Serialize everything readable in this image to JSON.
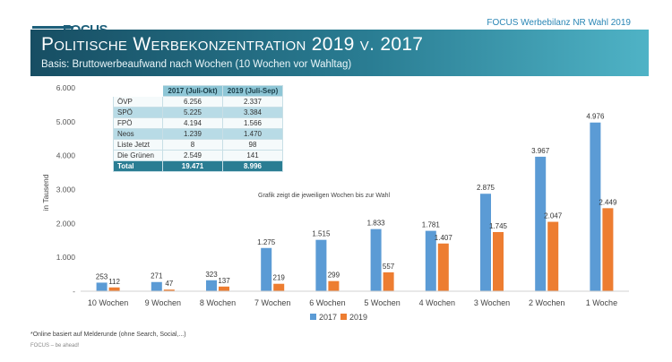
{
  "header": {
    "logo_text": "FOCUS",
    "top_right": "FOCUS Werbebilanz NR Wahl 2019",
    "title": "Politische Werbekonzentration 2019 v. 2017",
    "subtitle": "Basis: Bruttowerbeaufwand nach Wochen (10 Wochen vor Wahltag)"
  },
  "colors": {
    "series_2017": "#5b9bd5",
    "series_2019": "#ed7d31"
  },
  "table": {
    "headers": [
      "",
      "2017 (Juli-Okt)",
      "2019 (Juli-Sep)"
    ],
    "rows": [
      {
        "party": "ÖVP",
        "v2017": "6.256",
        "v2019": "2.337"
      },
      {
        "party": "SPÖ",
        "v2017": "5.225",
        "v2019": "3.384"
      },
      {
        "party": "FPÖ",
        "v2017": "4.194",
        "v2019": "1.566"
      },
      {
        "party": "Neos",
        "v2017": "1.239",
        "v2019": "1.470"
      },
      {
        "party": "Liste Jetzt",
        "v2017": "8",
        "v2019": "98"
      },
      {
        "party": "Die Grünen",
        "v2017": "2.549",
        "v2019": "141"
      }
    ],
    "total": {
      "party": "Total",
      "v2017": "19.471",
      "v2019": "8.996"
    }
  },
  "chart_data": {
    "type": "bar",
    "categories": [
      "10 Wochen",
      "9 Wochen",
      "8 Wochen",
      "7 Wochen",
      "6 Wochen",
      "5 Wochen",
      "4 Wochen",
      "3 Wochen",
      "2 Wochen",
      "1 Woche"
    ],
    "series": [
      {
        "name": "2017",
        "values": [
          253,
          271,
          323,
          1275,
          1515,
          1833,
          1781,
          2875,
          3967,
          4976
        ],
        "labels": [
          "253",
          "271",
          "323",
          "1.275",
          "1.515",
          "1.833",
          "1.781",
          "2.875",
          "3.967",
          "4.976"
        ]
      },
      {
        "name": "2019",
        "values": [
          112,
          47,
          137,
          219,
          299,
          557,
          1407,
          1745,
          2047,
          2449
        ],
        "labels": [
          "112",
          "47",
          "137",
          "219",
          "299",
          "557",
          "1.407",
          "1.745",
          "2.047",
          "2.449"
        ]
      }
    ],
    "ylabel": "in Tausend",
    "ylim": [
      0,
      6000
    ],
    "yticks": [
      "-",
      "1.000",
      "2.000",
      "3.000",
      "4.000",
      "5.000",
      "6.000"
    ],
    "annotation": "Grafik zeigt die jeweiligen Wochen bis zur Wahl",
    "legend": "bottom",
    "grid": false
  },
  "footnote": "*Online basiert auf Melderunde (ohne Search, Social,...)",
  "footer": "FOCUS – be ahead!"
}
